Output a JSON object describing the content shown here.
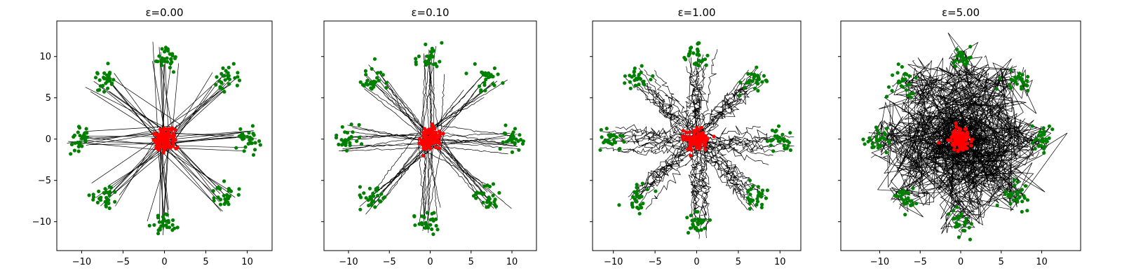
{
  "chart_data": [
    {
      "type": "scatter",
      "title": "ε=0.00",
      "xlim": [
        -13,
        13
      ],
      "ylim": [
        -13.5,
        14.3
      ],
      "xticks": [
        "−10",
        "−5",
        "0",
        "5",
        "10"
      ],
      "yticks": [
        "−10",
        "−5",
        "0",
        "5",
        "10"
      ],
      "cluster_radius": 10,
      "cluster_angles_deg": [
        0,
        45,
        90,
        135,
        180,
        225,
        270,
        315
      ],
      "noise": 0.0,
      "series": [
        {
          "role": "source",
          "color": "#ff0000",
          "center": [
            0,
            0
          ],
          "spread": 0.9
        },
        {
          "role": "target",
          "color": "#008000",
          "spread": 0.9
        },
        {
          "role": "trajectories",
          "color": "#000000"
        }
      ]
    },
    {
      "type": "scatter",
      "title": "ε=0.10",
      "xlim": [
        -13,
        13
      ],
      "ylim": [
        -13.5,
        14.3
      ],
      "xticks": [
        "−10",
        "−5",
        "0",
        "5",
        "10"
      ],
      "yticks": [],
      "cluster_radius": 10,
      "cluster_angles_deg": [
        0,
        45,
        90,
        135,
        180,
        225,
        270,
        315
      ],
      "noise": 0.1,
      "series": [
        {
          "role": "source",
          "color": "#ff0000",
          "center": [
            0,
            0
          ],
          "spread": 0.9
        },
        {
          "role": "target",
          "color": "#008000",
          "spread": 0.9
        },
        {
          "role": "trajectories",
          "color": "#000000"
        }
      ]
    },
    {
      "type": "scatter",
      "title": "ε=1.00",
      "xlim": [
        -12.5,
        12.5
      ],
      "ylim": [
        -13.5,
        14.3
      ],
      "xticks": [
        "−10",
        "−5",
        "0",
        "5",
        "10"
      ],
      "yticks": [],
      "cluster_radius": 10,
      "cluster_angles_deg": [
        0,
        45,
        90,
        135,
        180,
        225,
        270,
        315
      ],
      "noise": 1.0,
      "series": [
        {
          "role": "source",
          "color": "#ff0000",
          "center": [
            0,
            0
          ],
          "spread": 0.9
        },
        {
          "role": "target",
          "color": "#008000",
          "spread": 0.9
        },
        {
          "role": "trajectories",
          "color": "#000000"
        }
      ]
    },
    {
      "type": "scatter",
      "title": "ε=5.00",
      "xlim": [
        -14.8,
        14.8
      ],
      "ylim": [
        -13.5,
        14.3
      ],
      "xticks": [
        "−10",
        "−5",
        "0",
        "5",
        "10"
      ],
      "yticks": [],
      "cluster_radius": 10,
      "cluster_angles_deg": [
        0,
        45,
        90,
        135,
        180,
        225,
        270,
        315
      ],
      "noise": 5.0,
      "series": [
        {
          "role": "source",
          "color": "#ff0000",
          "center": [
            0,
            0
          ],
          "spread": 0.9
        },
        {
          "role": "target",
          "color": "#008000",
          "spread": 0.9
        },
        {
          "role": "trajectories",
          "color": "#000000"
        }
      ]
    }
  ]
}
